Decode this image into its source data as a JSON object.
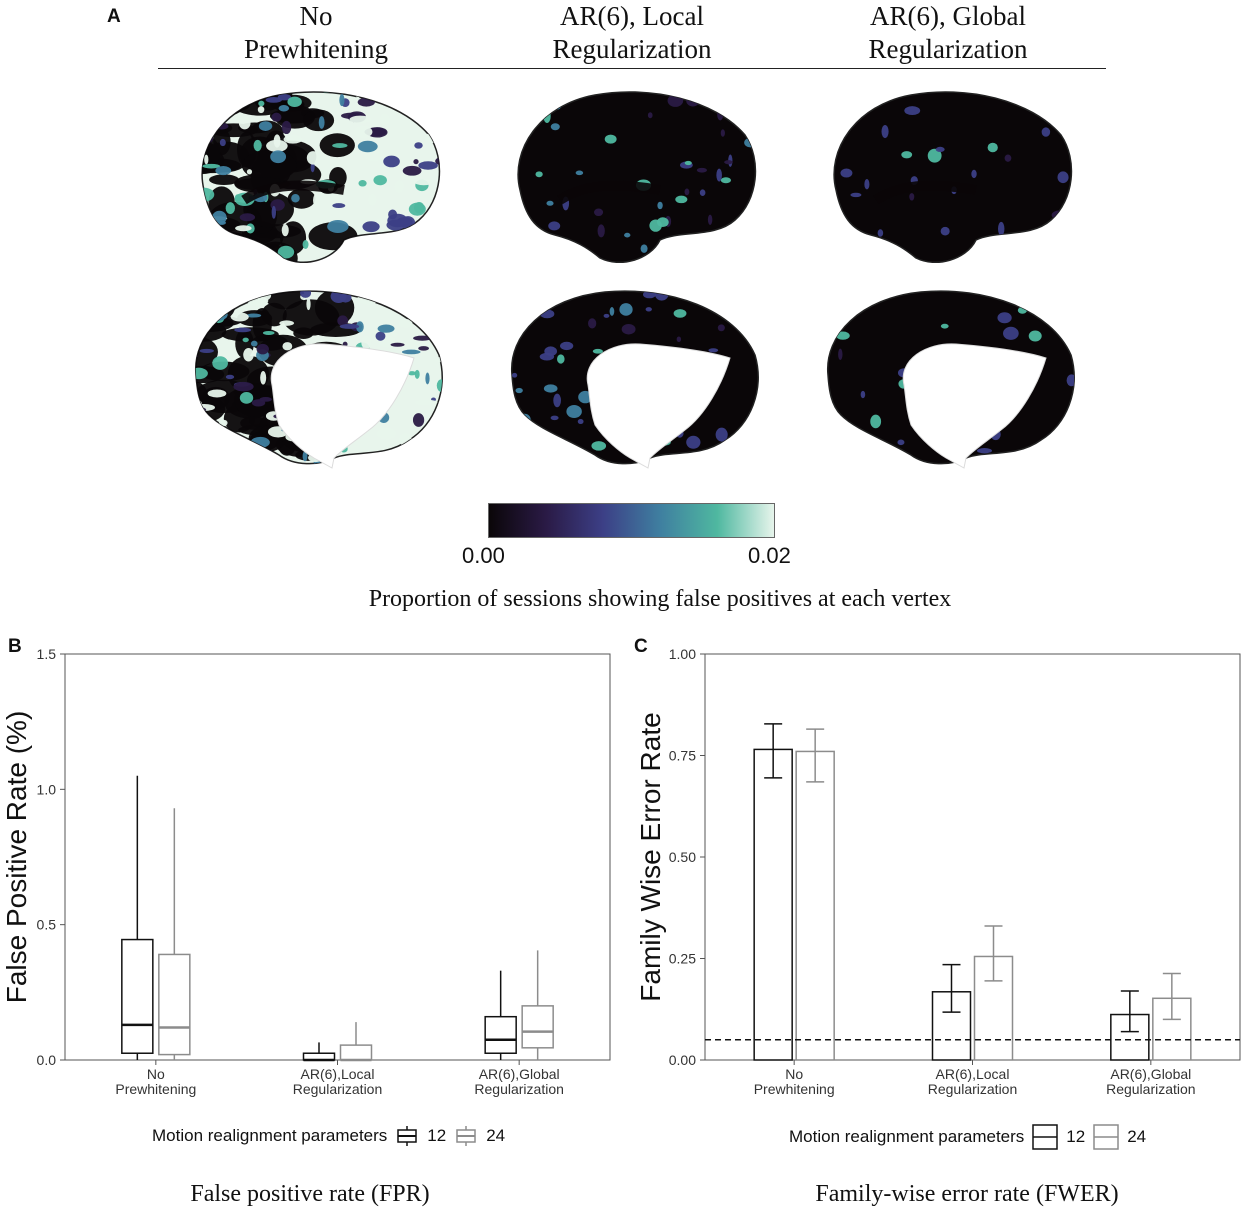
{
  "panel_a": {
    "letter": "A",
    "columns": [
      {
        "line1": "No",
        "line2": "Prewhitening"
      },
      {
        "line1": "AR(6), Local",
        "line2": "Regularization"
      },
      {
        "line1": "AR(6), Global",
        "line2": "Regularization"
      }
    ],
    "colorbar": {
      "min_label": "0.00",
      "max_label": "0.02",
      "title": "Proportion of sessions showing false positives at each vertex",
      "colors": [
        "#0a0608",
        "#2a1a45",
        "#3c3f86",
        "#3f7fa0",
        "#4fb8a0",
        "#e8f5ec"
      ]
    }
  },
  "panel_b": {
    "letter": "B",
    "caption": "False positive rate (FPR)",
    "legend": {
      "title": "Motion realignment parameters",
      "items": [
        "12",
        "24"
      ]
    }
  },
  "panel_c": {
    "letter": "C",
    "caption": "Family-wise error rate (FWER)",
    "legend": {
      "title": "Motion realignment parameters",
      "items": [
        "12",
        "24"
      ]
    }
  },
  "chart_data": [
    {
      "type": "box",
      "ylabel": "False Positive Rate (%)",
      "xlabel": "",
      "ylim": [
        0,
        1.5
      ],
      "yticks": [
        0.0,
        0.5,
        1.0,
        1.5
      ],
      "ytick_labels": [
        "0.0",
        "0.5",
        "1.0",
        "1.5"
      ],
      "categories": [
        [
          "No",
          "Prewhitening"
        ],
        [
          "AR(6),Local",
          "Regularization"
        ],
        [
          "AR(6),Global",
          "Regularization"
        ]
      ],
      "series": [
        {
          "name": "12",
          "color": "#111111",
          "boxes": [
            {
              "whisker_low": 0.0,
              "q1": 0.025,
              "median": 0.13,
              "q3": 0.445,
              "whisker_high": 1.05
            },
            {
              "whisker_low": 0.0,
              "q1": 0.0,
              "median": 0.0,
              "q3": 0.025,
              "whisker_high": 0.065
            },
            {
              "whisker_low": 0.0,
              "q1": 0.025,
              "median": 0.075,
              "q3": 0.16,
              "whisker_high": 0.33
            }
          ]
        },
        {
          "name": "24",
          "color": "#8c8c8c",
          "boxes": [
            {
              "whisker_low": 0.0,
              "q1": 0.02,
              "median": 0.12,
              "q3": 0.39,
              "whisker_high": 0.93
            },
            {
              "whisker_low": 0.0,
              "q1": 0.0,
              "median": 0.0,
              "q3": 0.055,
              "whisker_high": 0.14
            },
            {
              "whisker_low": 0.0,
              "q1": 0.045,
              "median": 0.105,
              "q3": 0.2,
              "whisker_high": 0.405
            }
          ]
        }
      ],
      "legend": "bottom"
    },
    {
      "type": "bar",
      "ylabel": "Family Wise Error Rate",
      "xlabel": "",
      "ylim": [
        0,
        1
      ],
      "yticks": [
        0.0,
        0.25,
        0.5,
        0.75,
        1.0
      ],
      "ytick_labels": [
        "0.00",
        "0.25",
        "0.50",
        "0.75",
        "1.00"
      ],
      "categories": [
        [
          "No",
          "Prewhitening"
        ],
        [
          "AR(6),Local",
          "Regularization"
        ],
        [
          "AR(6),Global",
          "Regularization"
        ]
      ],
      "reference_line": 0.05,
      "series": [
        {
          "name": "12",
          "color": "#111111",
          "values": [
            0.765,
            0.168,
            0.112
          ],
          "err_low": [
            0.695,
            0.118,
            0.07
          ],
          "err_high": [
            0.828,
            0.235,
            0.17
          ]
        },
        {
          "name": "24",
          "color": "#8c8c8c",
          "values": [
            0.76,
            0.255,
            0.152
          ],
          "err_low": [
            0.685,
            0.195,
            0.1
          ],
          "err_high": [
            0.815,
            0.33,
            0.213
          ]
        }
      ],
      "legend": "bottom"
    }
  ]
}
